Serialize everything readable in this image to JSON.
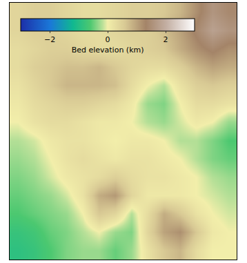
{
  "chart_data": {
    "type": "heatmap",
    "colorbar_title": "Bed elevation (km)",
    "zlim": [
      -3,
      3
    ],
    "zticks": [
      {
        "value": -2,
        "label": "−2"
      },
      0,
      2
    ],
    "tick_labels": false,
    "z": [
      [
        0.4,
        0.5,
        0.5,
        0.4,
        0.3,
        0.3,
        0.4,
        0.5,
        0.5,
        0.6,
        0.8,
        1.2,
        1.6,
        1.4
      ],
      [
        0.4,
        0.5,
        0.5,
        0.4,
        0.3,
        0.3,
        0.4,
        0.5,
        0.5,
        0.7,
        1.0,
        1.4,
        1.8,
        1.6
      ],
      [
        0.3,
        0.4,
        0.5,
        0.5,
        0.4,
        0.3,
        0.3,
        0.4,
        0.5,
        0.6,
        0.9,
        1.2,
        1.4,
        1.2
      ],
      [
        0.3,
        0.5,
        0.6,
        0.7,
        0.7,
        0.8,
        0.6,
        0.4,
        0.3,
        0.3,
        0.5,
        0.8,
        1.0,
        0.9
      ],
      [
        0.2,
        0.4,
        0.6,
        0.8,
        0.8,
        0.8,
        0.7,
        0.3,
        0.0,
        -0.2,
        0.2,
        0.5,
        0.6,
        0.5
      ],
      [
        0.1,
        0.3,
        0.4,
        0.5,
        0.5,
        0.4,
        0.3,
        0.1,
        -0.3,
        -0.4,
        0.0,
        0.3,
        0.3,
        0.2
      ],
      [
        0.0,
        0.2,
        0.3,
        0.3,
        0.2,
        0.1,
        0.1,
        0.0,
        -0.2,
        -0.3,
        -0.1,
        0.1,
        0.0,
        -0.3
      ],
      [
        -0.2,
        -0.1,
        0.1,
        0.2,
        0.2,
        0.1,
        0.0,
        0.1,
        0.1,
        0.0,
        -0.2,
        -0.2,
        -0.4,
        -0.6
      ],
      [
        -0.3,
        -0.2,
        0.0,
        0.2,
        0.3,
        0.2,
        0.1,
        0.2,
        0.2,
        0.1,
        0.0,
        -0.2,
        -0.4,
        -0.5
      ],
      [
        -0.4,
        -0.3,
        -0.1,
        0.1,
        0.2,
        0.3,
        0.5,
        0.3,
        0.2,
        0.2,
        0.1,
        0.0,
        -0.2,
        -0.3
      ],
      [
        -0.5,
        -0.4,
        -0.3,
        -0.1,
        0.2,
        0.9,
        1.1,
        0.4,
        0.1,
        0.1,
        0.1,
        0.0,
        -0.1,
        -0.2
      ],
      [
        -0.6,
        -0.5,
        -0.4,
        -0.3,
        0.0,
        0.6,
        0.4,
        -0.2,
        0.3,
        0.9,
        0.6,
        0.2,
        0.0,
        -0.1
      ],
      [
        -0.8,
        -0.7,
        -0.5,
        -0.4,
        -0.2,
        0.0,
        -0.3,
        -0.4,
        0.4,
        1.0,
        1.2,
        0.6,
        0.1,
        0.0
      ],
      [
        -0.9,
        -0.8,
        -0.6,
        -0.4,
        -0.3,
        -0.3,
        -0.5,
        -0.3,
        0.2,
        0.6,
        0.8,
        0.3,
        0.0,
        0.0
      ]
    ]
  }
}
